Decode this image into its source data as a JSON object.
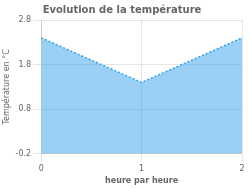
{
  "chart_data": {
    "type": "area",
    "title": "Evolution de la température",
    "xlabel": "heure par heure",
    "ylabel": "Température en °C",
    "x": [
      0,
      1,
      2
    ],
    "values": [
      2.4,
      1.4,
      2.4
    ],
    "line_style": "dotted",
    "xlim": [
      0,
      2
    ],
    "xticks": [
      0,
      1,
      2
    ],
    "ylim": [
      -0.2,
      2.8
    ],
    "yticks": [
      -0.2,
      0.8,
      1.8,
      2.8
    ],
    "grid": true
  }
}
